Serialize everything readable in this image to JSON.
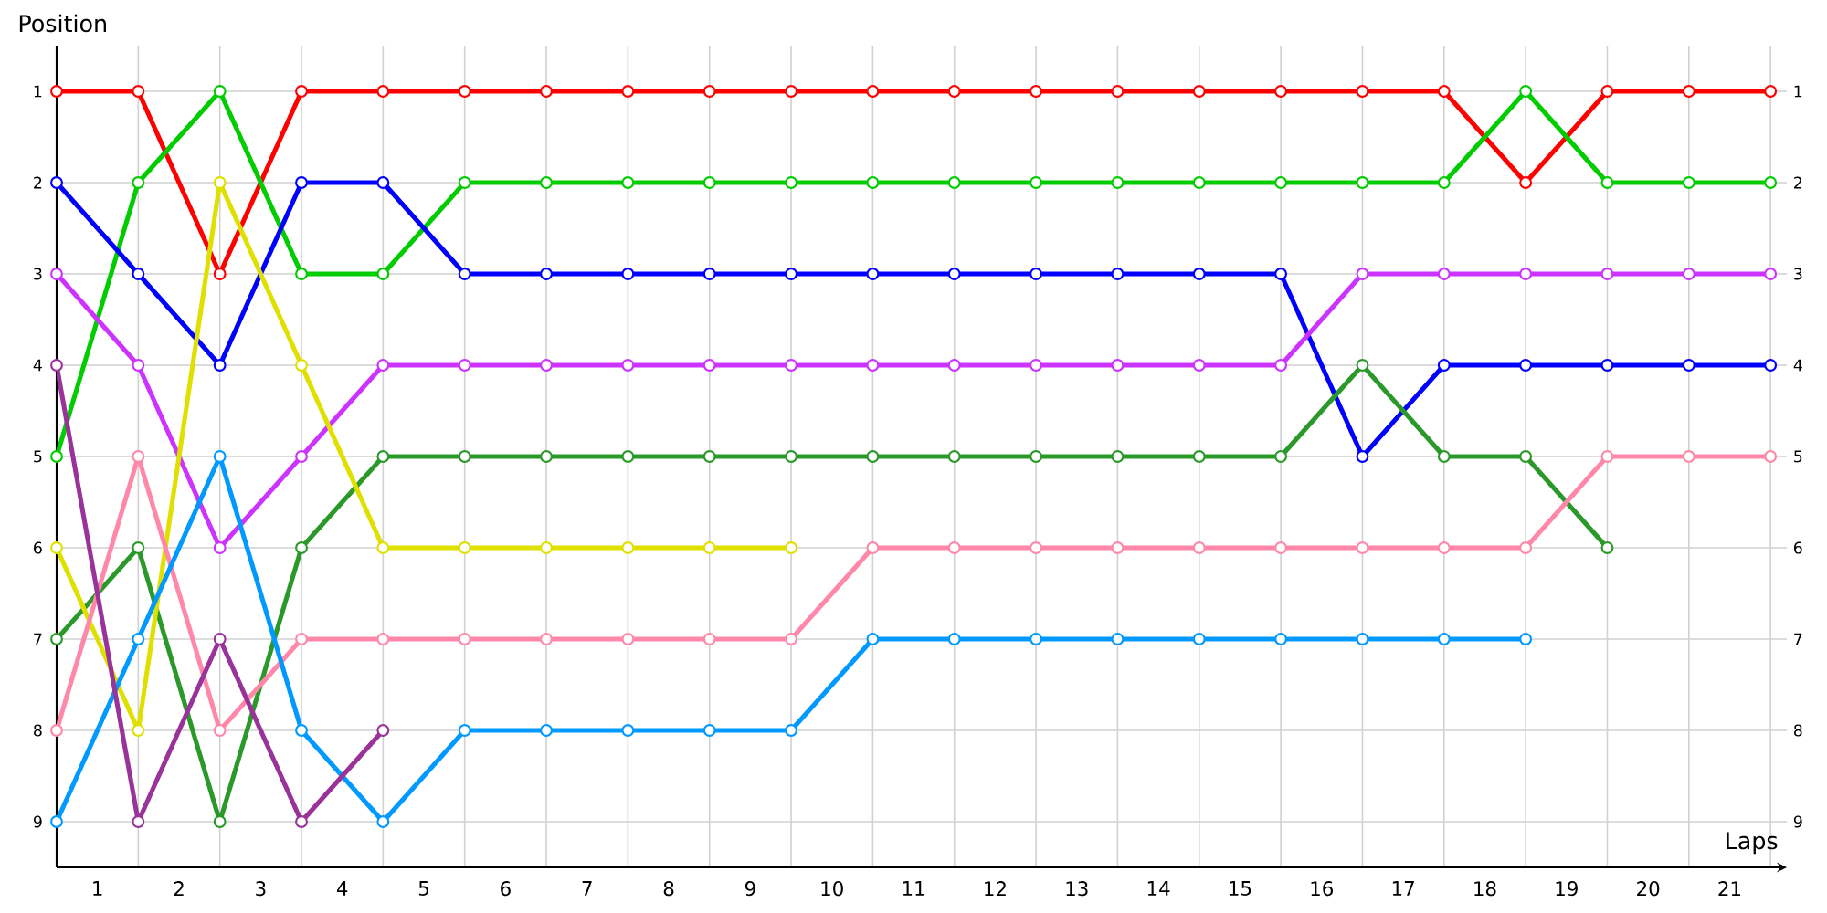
{
  "chart_data": {
    "type": "line",
    "xlabel": "Laps",
    "ylabel": "Position",
    "x": [
      0,
      1,
      2,
      3,
      4,
      5,
      6,
      7,
      8,
      9,
      10,
      11,
      12,
      13,
      14,
      15,
      16,
      17,
      18,
      19,
      20,
      21
    ],
    "series": [
      {
        "color": "#ff0000",
        "values": [
          1,
          1,
          3,
          1,
          1,
          1,
          1,
          1,
          1,
          1,
          1,
          1,
          1,
          1,
          1,
          1,
          1,
          1,
          2,
          1,
          1,
          1
        ]
      },
      {
        "color": "#00cc00",
        "values": [
          5,
          2,
          1,
          3,
          3,
          2,
          2,
          2,
          2,
          2,
          2,
          2,
          2,
          2,
          2,
          2,
          2,
          2,
          1,
          2,
          2,
          2
        ]
      },
      {
        "color": "#0000ff",
        "values": [
          2,
          3,
          4,
          2,
          2,
          3,
          3,
          3,
          3,
          3,
          3,
          3,
          3,
          3,
          3,
          3,
          5,
          4,
          4,
          4,
          4,
          4
        ]
      },
      {
        "color": "#cc33ff",
        "values": [
          3,
          4,
          6,
          5,
          4,
          4,
          4,
          4,
          4,
          4,
          4,
          4,
          4,
          4,
          4,
          4,
          3,
          3,
          3,
          3,
          3,
          3
        ]
      },
      {
        "color": "#2a992a",
        "values": [
          7,
          6,
          9,
          6,
          5,
          5,
          5,
          5,
          5,
          5,
          5,
          5,
          5,
          5,
          5,
          5,
          4,
          5,
          5,
          6,
          null,
          null
        ]
      },
      {
        "color": "#e0e000",
        "values": [
          6,
          8,
          2,
          4,
          6,
          6,
          6,
          6,
          6,
          6,
          null,
          null,
          null,
          null,
          null,
          null,
          null,
          null,
          null,
          null,
          null,
          null
        ]
      },
      {
        "color": "#ff88aa",
        "values": [
          8,
          5,
          8,
          7,
          7,
          7,
          7,
          7,
          7,
          7,
          6,
          6,
          6,
          6,
          6,
          6,
          6,
          6,
          6,
          5,
          5,
          5
        ]
      },
      {
        "color": "#0099ff",
        "values": [
          9,
          7,
          5,
          8,
          9,
          8,
          8,
          8,
          8,
          8,
          7,
          7,
          7,
          7,
          7,
          7,
          7,
          7,
          7,
          null,
          null,
          null
        ]
      },
      {
        "color": "#993399",
        "values": [
          4,
          9,
          7,
          9,
          8,
          null,
          null,
          null,
          null,
          null,
          null,
          null,
          null,
          null,
          null,
          null,
          null,
          null,
          null,
          null,
          null,
          null
        ]
      }
    ],
    "xlim": [
      0,
      21.2
    ],
    "ylim": [
      9.5,
      0.5
    ],
    "xticks": [
      {
        "value": 0,
        "label": null
      },
      {
        "value": 1,
        "label": null
      },
      {
        "value": 2,
        "label": null
      },
      {
        "value": 3,
        "label": null
      },
      {
        "value": 4,
        "label": null
      },
      {
        "value": 5,
        "label": null
      },
      {
        "value": 6,
        "label": null
      },
      {
        "value": 7,
        "label": null
      },
      {
        "value": 8,
        "label": null
      },
      {
        "value": 9,
        "label": null
      },
      {
        "value": 10,
        "label": null
      },
      {
        "value": 11,
        "label": null
      },
      {
        "value": 12,
        "label": null
      },
      {
        "value": 13,
        "label": null
      },
      {
        "value": 14,
        "label": null
      },
      {
        "value": 15,
        "label": null
      },
      {
        "value": 16,
        "label": null
      },
      {
        "value": 17,
        "label": null
      },
      {
        "value": 18,
        "label": null
      },
      {
        "value": 19,
        "label": null
      },
      {
        "value": 20,
        "label": null
      },
      {
        "value": 21,
        "label": null
      },
      {
        "value": 0.5,
        "label": "1"
      },
      {
        "value": 1.5,
        "label": "2"
      },
      {
        "value": 2.5,
        "label": "3"
      },
      {
        "value": 3.5,
        "label": "4"
      },
      {
        "value": 4.5,
        "label": "5"
      },
      {
        "value": 5.5,
        "label": "6"
      },
      {
        "value": 6.5,
        "label": "7"
      },
      {
        "value": 7.5,
        "label": "8"
      },
      {
        "value": 8.5,
        "label": "9"
      },
      {
        "value": 9.5,
        "label": "10"
      },
      {
        "value": 10.5,
        "label": "11"
      },
      {
        "value": 11.5,
        "label": "12"
      },
      {
        "value": 12.5,
        "label": "13"
      },
      {
        "value": 13.5,
        "label": "14"
      },
      {
        "value": 14.5,
        "label": "15"
      },
      {
        "value": 15.5,
        "label": "16"
      },
      {
        "value": 16.5,
        "label": "17"
      },
      {
        "value": 17.5,
        "label": "18"
      },
      {
        "value": 18.5,
        "label": "19"
      },
      {
        "value": 19.5,
        "label": "20"
      },
      {
        "value": 20.5,
        "label": "21"
      }
    ],
    "yticks": [
      1,
      2,
      3,
      4,
      5,
      6,
      7,
      8,
      9
    ],
    "y2lim": [
      9.5,
      0.5
    ],
    "y2ticks": [
      1,
      2,
      3,
      4,
      5,
      6,
      7,
      8,
      9
    ],
    "grid": true,
    "marker": "circle",
    "line_style": "solid"
  }
}
